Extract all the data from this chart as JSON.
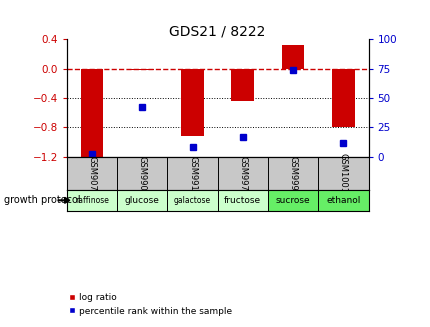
{
  "title": "GDS21 / 8222",
  "samples": [
    "GSM907",
    "GSM990",
    "GSM991",
    "GSM997",
    "GSM999",
    "GSM1001"
  ],
  "protocols": [
    "raffinose",
    "glucose",
    "galactose",
    "fructose",
    "sucrose",
    "ethanol"
  ],
  "log_ratio": [
    -1.21,
    -0.02,
    -0.91,
    -0.44,
    0.32,
    -0.8
  ],
  "percentile_rank": [
    2,
    42,
    8,
    17,
    74,
    12
  ],
  "ylim_left": [
    -1.2,
    0.4
  ],
  "ylim_right": [
    0,
    100
  ],
  "yticks_left": [
    -1.2,
    -0.8,
    -0.4,
    0.0,
    0.4
  ],
  "yticks_right": [
    0,
    25,
    50,
    75,
    100
  ],
  "bar_color": "#cc0000",
  "square_color": "#0000cc",
  "ref_line_color": "#cc0000",
  "bg_color": "#ffffff",
  "protocol_colors": [
    "#ccffcc",
    "#ccffcc",
    "#ccffcc",
    "#ccffcc",
    "#66ee66",
    "#66ee66"
  ],
  "sample_bg": "#c8c8c8",
  "legend_log": "log ratio",
  "legend_pct": "percentile rank within the sample",
  "title_color": "#000000",
  "left_tick_color": "#cc0000",
  "right_tick_color": "#0000cc",
  "bar_width": 0.45
}
